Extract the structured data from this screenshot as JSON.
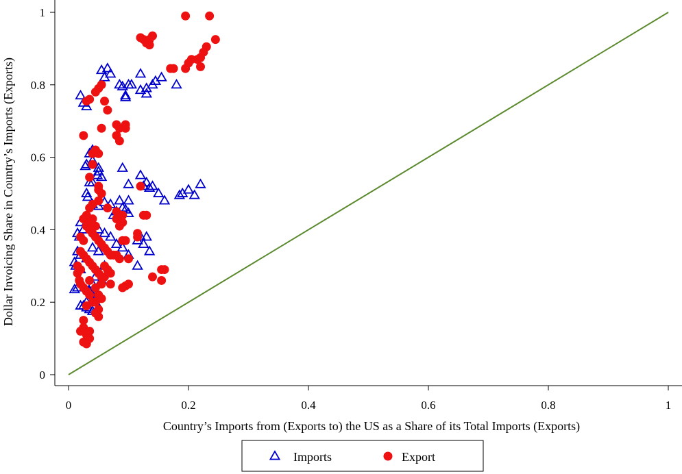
{
  "chart_data": {
    "type": "scatter",
    "title": "",
    "xlabel": "Country’s Imports from (Exports to) the US as a  Share of its Total Imports (Exports)",
    "ylabel": "Dollar Invoicing Share in Country’s Imports (Exports)",
    "xlim": [
      0,
      1
    ],
    "ylim": [
      0,
      1
    ],
    "x_ticks": [
      "0",
      "0.2",
      "0.4",
      "0.6",
      "0.8",
      "1"
    ],
    "y_ticks": [
      "0",
      "0.2",
      "0.4",
      "0.6",
      "0.8",
      "1"
    ],
    "grid": false,
    "legend_position": "bottom",
    "reference_line": {
      "x": [
        0,
        1
      ],
      "y": [
        0,
        1
      ],
      "color": "#5b8a2e"
    },
    "series": [
      {
        "name": "Imports",
        "marker": "triangle-open",
        "color": "#0000cc",
        "points": [
          [
            0.02,
            0.77
          ],
          [
            0.025,
            0.75
          ],
          [
            0.03,
            0.74
          ],
          [
            0.055,
            0.84
          ],
          [
            0.065,
            0.845
          ],
          [
            0.06,
            0.82
          ],
          [
            0.07,
            0.83
          ],
          [
            0.085,
            0.8
          ],
          [
            0.09,
            0.795
          ],
          [
            0.1,
            0.8
          ],
          [
            0.105,
            0.8
          ],
          [
            0.095,
            0.77
          ],
          [
            0.095,
            0.765
          ],
          [
            0.12,
            0.785
          ],
          [
            0.12,
            0.83
          ],
          [
            0.13,
            0.775
          ],
          [
            0.13,
            0.79
          ],
          [
            0.14,
            0.8
          ],
          [
            0.145,
            0.81
          ],
          [
            0.155,
            0.82
          ],
          [
            0.18,
            0.8
          ],
          [
            0.035,
            0.61
          ],
          [
            0.04,
            0.62
          ],
          [
            0.04,
            0.59
          ],
          [
            0.028,
            0.575
          ],
          [
            0.03,
            0.58
          ],
          [
            0.05,
            0.56
          ],
          [
            0.048,
            0.55
          ],
          [
            0.055,
            0.545
          ],
          [
            0.05,
            0.57
          ],
          [
            0.09,
            0.57
          ],
          [
            0.04,
            0.53
          ],
          [
            0.035,
            0.53
          ],
          [
            0.1,
            0.525
          ],
          [
            0.12,
            0.55
          ],
          [
            0.125,
            0.52
          ],
          [
            0.13,
            0.53
          ],
          [
            0.135,
            0.515
          ],
          [
            0.14,
            0.52
          ],
          [
            0.15,
            0.5
          ],
          [
            0.16,
            0.48
          ],
          [
            0.185,
            0.495
          ],
          [
            0.19,
            0.5
          ],
          [
            0.2,
            0.51
          ],
          [
            0.21,
            0.495
          ],
          [
            0.22,
            0.525
          ],
          [
            0.03,
            0.5
          ],
          [
            0.032,
            0.49
          ],
          [
            0.04,
            0.47
          ],
          [
            0.05,
            0.465
          ],
          [
            0.06,
            0.475
          ],
          [
            0.07,
            0.47
          ],
          [
            0.085,
            0.48
          ],
          [
            0.09,
            0.46
          ],
          [
            0.1,
            0.48
          ],
          [
            0.095,
            0.455
          ],
          [
            0.08,
            0.45
          ],
          [
            0.075,
            0.44
          ],
          [
            0.1,
            0.445
          ],
          [
            0.02,
            0.42
          ],
          [
            0.025,
            0.4
          ],
          [
            0.015,
            0.39
          ],
          [
            0.018,
            0.38
          ],
          [
            0.03,
            0.42
          ],
          [
            0.04,
            0.41
          ],
          [
            0.05,
            0.4
          ],
          [
            0.06,
            0.39
          ],
          [
            0.07,
            0.38
          ],
          [
            0.08,
            0.36
          ],
          [
            0.09,
            0.35
          ],
          [
            0.1,
            0.33
          ],
          [
            0.12,
            0.38
          ],
          [
            0.125,
            0.36
          ],
          [
            0.13,
            0.38
          ],
          [
            0.135,
            0.34
          ],
          [
            0.115,
            0.37
          ],
          [
            0.115,
            0.3
          ],
          [
            0.015,
            0.34
          ],
          [
            0.02,
            0.33
          ],
          [
            0.01,
            0.31
          ],
          [
            0.012,
            0.3
          ],
          [
            0.02,
            0.29
          ],
          [
            0.03,
            0.32
          ],
          [
            0.04,
            0.35
          ],
          [
            0.05,
            0.34
          ],
          [
            0.06,
            0.3
          ],
          [
            0.055,
            0.26
          ],
          [
            0.045,
            0.27
          ],
          [
            0.04,
            0.25
          ],
          [
            0.035,
            0.23
          ],
          [
            0.04,
            0.22
          ],
          [
            0.045,
            0.21
          ],
          [
            0.03,
            0.2
          ],
          [
            0.025,
            0.19
          ],
          [
            0.02,
            0.19
          ],
          [
            0.035,
            0.18
          ],
          [
            0.04,
            0.175
          ],
          [
            0.03,
            0.185
          ],
          [
            0.01,
            0.235
          ],
          [
            0.015,
            0.24
          ],
          [
            0.045,
            0.2
          ]
        ]
      },
      {
        "name": "Export",
        "marker": "circle-filled",
        "color": "#ee1111",
        "points": [
          [
            0.195,
            0.99
          ],
          [
            0.235,
            0.99
          ],
          [
            0.12,
            0.93
          ],
          [
            0.125,
            0.925
          ],
          [
            0.13,
            0.915
          ],
          [
            0.135,
            0.925
          ],
          [
            0.14,
            0.935
          ],
          [
            0.135,
            0.91
          ],
          [
            0.245,
            0.925
          ],
          [
            0.23,
            0.905
          ],
          [
            0.225,
            0.89
          ],
          [
            0.22,
            0.875
          ],
          [
            0.215,
            0.87
          ],
          [
            0.205,
            0.87
          ],
          [
            0.2,
            0.86
          ],
          [
            0.195,
            0.845
          ],
          [
            0.22,
            0.85
          ],
          [
            0.175,
            0.845
          ],
          [
            0.17,
            0.845
          ],
          [
            0.055,
            0.8
          ],
          [
            0.05,
            0.79
          ],
          [
            0.045,
            0.78
          ],
          [
            0.035,
            0.76
          ],
          [
            0.03,
            0.755
          ],
          [
            0.06,
            0.755
          ],
          [
            0.065,
            0.73
          ],
          [
            0.055,
            0.68
          ],
          [
            0.08,
            0.69
          ],
          [
            0.085,
            0.68
          ],
          [
            0.095,
            0.68
          ],
          [
            0.095,
            0.69
          ],
          [
            0.08,
            0.66
          ],
          [
            0.085,
            0.645
          ],
          [
            0.025,
            0.66
          ],
          [
            0.045,
            0.62
          ],
          [
            0.04,
            0.61
          ],
          [
            0.05,
            0.61
          ],
          [
            0.04,
            0.58
          ],
          [
            0.035,
            0.545
          ],
          [
            0.12,
            0.52
          ],
          [
            0.05,
            0.52
          ],
          [
            0.05,
            0.51
          ],
          [
            0.055,
            0.5
          ],
          [
            0.05,
            0.48
          ],
          [
            0.04,
            0.47
          ],
          [
            0.035,
            0.46
          ],
          [
            0.065,
            0.46
          ],
          [
            0.08,
            0.45
          ],
          [
            0.085,
            0.44
          ],
          [
            0.09,
            0.44
          ],
          [
            0.08,
            0.43
          ],
          [
            0.09,
            0.42
          ],
          [
            0.085,
            0.41
          ],
          [
            0.125,
            0.44
          ],
          [
            0.13,
            0.44
          ],
          [
            0.03,
            0.44
          ],
          [
            0.025,
            0.43
          ],
          [
            0.035,
            0.42
          ],
          [
            0.04,
            0.43
          ],
          [
            0.045,
            0.41
          ],
          [
            0.03,
            0.41
          ],
          [
            0.035,
            0.4
          ],
          [
            0.04,
            0.39
          ],
          [
            0.02,
            0.38
          ],
          [
            0.025,
            0.37
          ],
          [
            0.045,
            0.38
          ],
          [
            0.05,
            0.37
          ],
          [
            0.055,
            0.36
          ],
          [
            0.06,
            0.35
          ],
          [
            0.065,
            0.34
          ],
          [
            0.07,
            0.33
          ],
          [
            0.075,
            0.33
          ],
          [
            0.08,
            0.33
          ],
          [
            0.085,
            0.32
          ],
          [
            0.09,
            0.37
          ],
          [
            0.095,
            0.37
          ],
          [
            0.115,
            0.39
          ],
          [
            0.115,
            0.38
          ],
          [
            0.1,
            0.32
          ],
          [
            0.02,
            0.34
          ],
          [
            0.025,
            0.33
          ],
          [
            0.03,
            0.32
          ],
          [
            0.035,
            0.31
          ],
          [
            0.04,
            0.3
          ],
          [
            0.045,
            0.29
          ],
          [
            0.05,
            0.28
          ],
          [
            0.055,
            0.27
          ],
          [
            0.06,
            0.27
          ],
          [
            0.065,
            0.29
          ],
          [
            0.07,
            0.28
          ],
          [
            0.015,
            0.3
          ],
          [
            0.02,
            0.29
          ],
          [
            0.015,
            0.28
          ],
          [
            0.018,
            0.26
          ],
          [
            0.02,
            0.25
          ],
          [
            0.025,
            0.24
          ],
          [
            0.03,
            0.23
          ],
          [
            0.035,
            0.22
          ],
          [
            0.045,
            0.24
          ],
          [
            0.05,
            0.22
          ],
          [
            0.055,
            0.21
          ],
          [
            0.045,
            0.2
          ],
          [
            0.05,
            0.18
          ],
          [
            0.05,
            0.16
          ],
          [
            0.045,
            0.17
          ],
          [
            0.04,
            0.2
          ],
          [
            0.03,
            0.19
          ],
          [
            0.025,
            0.15
          ],
          [
            0.025,
            0.13
          ],
          [
            0.02,
            0.12
          ],
          [
            0.03,
            0.11
          ],
          [
            0.035,
            0.12
          ],
          [
            0.025,
            0.09
          ],
          [
            0.03,
            0.085
          ],
          [
            0.035,
            0.1
          ],
          [
            0.09,
            0.24
          ],
          [
            0.095,
            0.245
          ],
          [
            0.1,
            0.25
          ],
          [
            0.14,
            0.27
          ],
          [
            0.155,
            0.26
          ],
          [
            0.16,
            0.29
          ],
          [
            0.155,
            0.29
          ],
          [
            0.06,
            0.3
          ],
          [
            0.07,
            0.25
          ],
          [
            0.035,
            0.26
          ],
          [
            0.055,
            0.25
          ]
        ]
      }
    ]
  }
}
